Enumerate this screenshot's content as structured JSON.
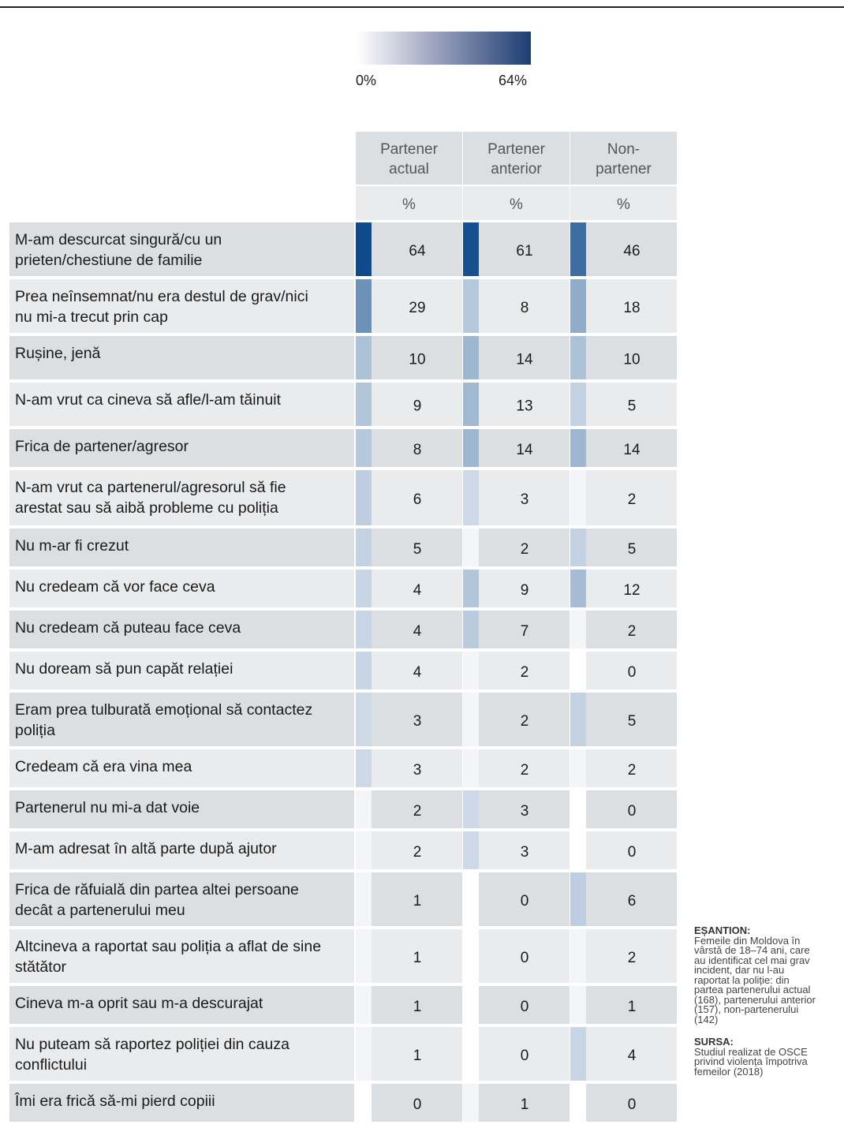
{
  "legend": {
    "min_label": "0%",
    "max_label": "64%",
    "min_value": 0,
    "max_value": 64,
    "color_low": "#ffffff",
    "color_high": "#1d3d72"
  },
  "chart_data": {
    "type": "table",
    "columns": [
      "Partener actual",
      "Partener anterior",
      "Non-partener"
    ],
    "column_header_lines": [
      [
        "Partener",
        "actual"
      ],
      [
        "Partener",
        "anterior"
      ],
      [
        "Non-",
        "partener"
      ]
    ],
    "unit_label": "%",
    "rows": [
      {
        "label_lines": [
          "M-am descurcat singură/cu un",
          "prieten/chestiune de familie"
        ],
        "values": [
          64,
          61,
          46
        ]
      },
      {
        "label_lines": [
          "Prea neînsemnat/nu era destul de grav/nici",
          "nu mi-a trecut prin cap"
        ],
        "values": [
          29,
          8,
          18
        ]
      },
      {
        "label_lines": [
          "Rușine, jenă"
        ],
        "values": [
          10,
          14,
          10
        ]
      },
      {
        "label_lines": [
          "N-am vrut ca cineva să afle/l-am tăinuit"
        ],
        "values": [
          9,
          13,
          5
        ]
      },
      {
        "label_lines": [
          "Frica de partener/agresor"
        ],
        "values": [
          8,
          14,
          14
        ]
      },
      {
        "label_lines": [
          "N-am vrut ca partenerul/agresorul să fie",
          "arestat sau să aibă probleme cu poliția"
        ],
        "values": [
          6,
          3,
          2
        ]
      },
      {
        "label_lines": [
          "Nu m-ar fi crezut"
        ],
        "values": [
          5,
          2,
          5
        ]
      },
      {
        "label_lines": [
          "Nu credeam că vor face ceva"
        ],
        "values": [
          4,
          9,
          12
        ]
      },
      {
        "label_lines": [
          "Nu credeam că puteau face ceva"
        ],
        "values": [
          4,
          7,
          2
        ]
      },
      {
        "label_lines": [
          "Nu doream să pun capăt relației"
        ],
        "values": [
          4,
          2,
          0
        ]
      },
      {
        "label_lines": [
          "Eram prea tulburată emoțional să contactez",
          "poliția"
        ],
        "values": [
          3,
          2,
          5
        ]
      },
      {
        "label_lines": [
          "Credeam că era vina mea"
        ],
        "values": [
          3,
          2,
          2
        ]
      },
      {
        "label_lines": [
          "Partenerul nu mi-a dat voie"
        ],
        "values": [
          2,
          3,
          0
        ]
      },
      {
        "label_lines": [
          "M-am adresat în altă parte după ajutor"
        ],
        "values": [
          2,
          3,
          0
        ]
      },
      {
        "label_lines": [
          "Frica de răfuială din partea altei persoane",
          "decât a partenerului meu"
        ],
        "values": [
          1,
          0,
          6
        ]
      },
      {
        "label_lines": [
          "Altcineva a raportat sau poliția a aflat de sine",
          "stătător"
        ],
        "values": [
          1,
          0,
          2
        ]
      },
      {
        "label_lines": [
          "Cineva m-a oprit sau m-a descurajat"
        ],
        "values": [
          1,
          0,
          1
        ]
      },
      {
        "label_lines": [
          "Nu puteam să raportez poliției din cauza",
          "conflictului"
        ],
        "values": [
          1,
          0,
          4
        ]
      },
      {
        "label_lines": [
          "Îmi era frică să-mi pierd copiii"
        ],
        "values": [
          0,
          1,
          0
        ]
      }
    ]
  },
  "notes": {
    "sample_heading": "EȘANTION:",
    "sample_lines": [
      "Femeile din Moldova în",
      "vârstă de 18–74 ani, care",
      "au identificat cel mai grav",
      "incident, dar nu l-au",
      "raportat la poliție: din",
      "partea partenerului actual",
      "(168), partenerului anterior",
      "(157), non-partenerului",
      "(142)"
    ],
    "source_heading": "SURSA:",
    "source_lines": [
      "Studiul realizat de OSCE",
      "privind violența împotriva",
      "femeilor (2018)"
    ]
  }
}
